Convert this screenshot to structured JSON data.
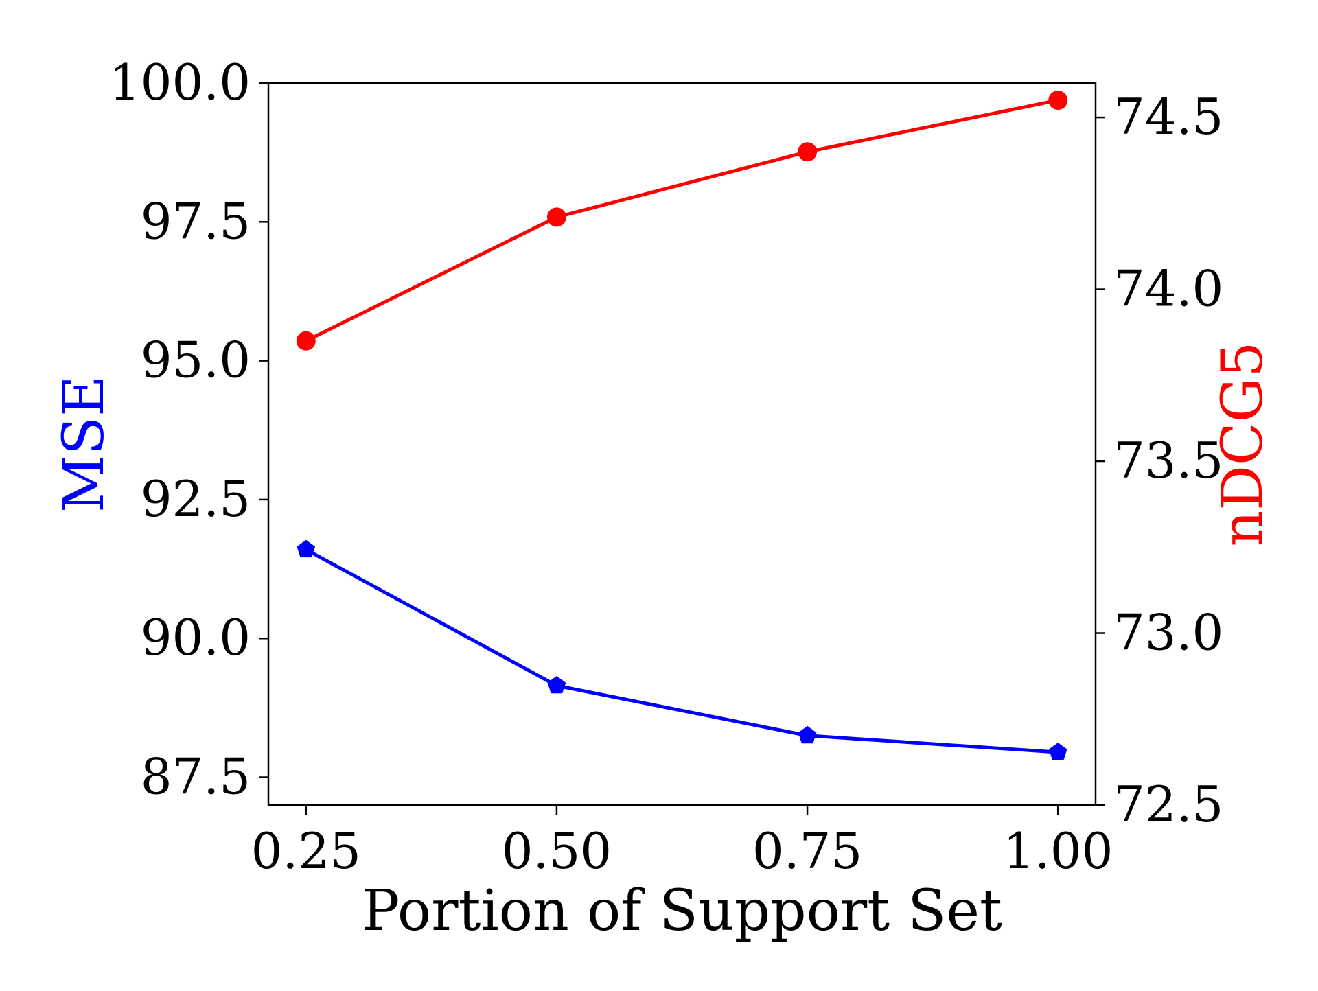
{
  "chart_data": {
    "type": "line",
    "xlabel": "Portion of Support Set",
    "x": [
      0.25,
      0.5,
      0.75,
      1.0
    ],
    "x_tick_labels": [
      "0.25",
      "0.50",
      "0.75",
      "1.00"
    ],
    "xlim": [
      0.2125,
      1.0375
    ],
    "left_axis": {
      "label": "MSE",
      "color": "#0000ff",
      "ylim": [
        87.0,
        100.0
      ],
      "ticks": [
        87.5,
        90.0,
        92.5,
        95.0,
        97.5,
        100.0
      ],
      "tick_labels": [
        "87.5",
        "90.0",
        "92.5",
        "95.0",
        "97.5",
        "100.0"
      ]
    },
    "right_axis": {
      "label": "nDCG5",
      "color": "#ff0000",
      "ylim": [
        72.5,
        74.6
      ],
      "ticks": [
        72.5,
        73.0,
        73.5,
        74.0,
        74.5
      ],
      "tick_labels": [
        "72.5",
        "73.0",
        "73.5",
        "74.0",
        "74.5"
      ]
    },
    "series": [
      {
        "axis": "left",
        "color": "#0000ff",
        "marker": "pentagon",
        "values": [
          91.6,
          89.15,
          88.25,
          87.95
        ]
      },
      {
        "axis": "right",
        "color": "#ff0000",
        "marker": "circle",
        "values": [
          73.85,
          74.21,
          74.4,
          74.55
        ]
      }
    ],
    "grid": false
  }
}
